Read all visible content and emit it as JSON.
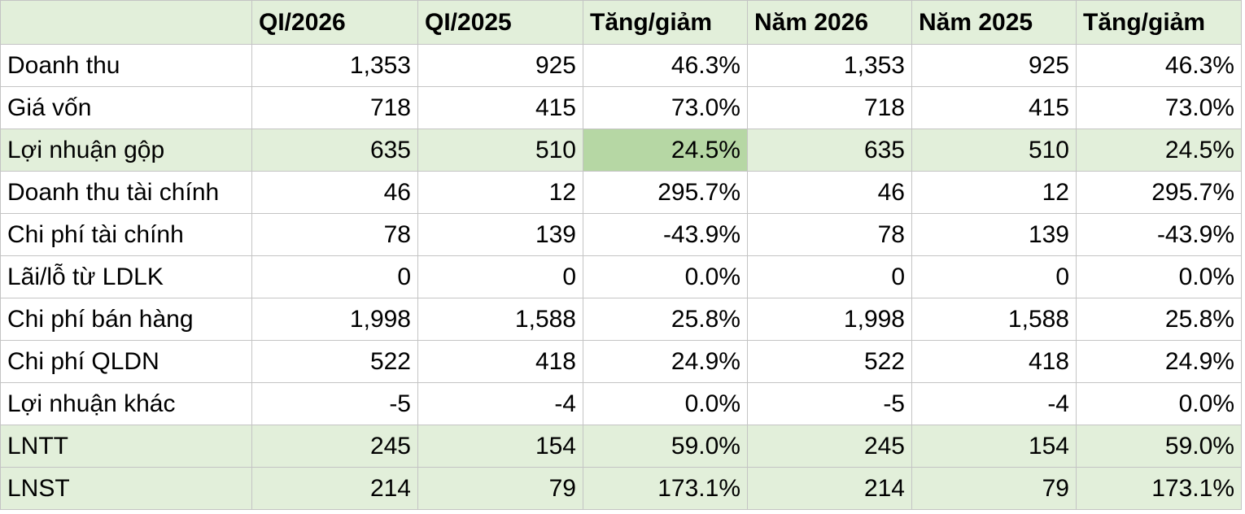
{
  "table": {
    "header": [
      "QI/2026",
      "QI/2025",
      "Tăng/giảm",
      "Năm 2026",
      "Năm 2025",
      "Tăng/giảm"
    ],
    "rows": [
      [
        "Doanh thu",
        "1,353",
        "925",
        "46.3%",
        "1,353",
        "925",
        "46.3%"
      ],
      [
        "Giá vốn",
        "718",
        "415",
        "73.0%",
        "718",
        "415",
        "73.0%"
      ],
      [
        "Lợi nhuận gộp",
        "635",
        "510",
        "24.5%",
        "635",
        "510",
        "24.5%"
      ],
      [
        "Doanh thu tài chính",
        "46",
        "12",
        "295.7%",
        "46",
        "12",
        "295.7%"
      ],
      [
        "Chi phí tài chính",
        "78",
        "139",
        "-43.9%",
        "78",
        "139",
        "-43.9%"
      ],
      [
        "Lãi/lỗ từ LDLK",
        "0",
        "0",
        "0.0%",
        "0",
        "0",
        "0.0%"
      ],
      [
        "Chi phí bán hàng",
        "1,998",
        "1,588",
        "25.8%",
        "1,998",
        "1,588",
        "25.8%"
      ],
      [
        "Chi phí QLDN",
        "522",
        "418",
        "24.9%",
        "522",
        "418",
        "24.9%"
      ],
      [
        "Lợi nhuận khác",
        "-5",
        "-4",
        "0.0%",
        "-5",
        "-4",
        "0.0%"
      ],
      [
        "LNTT",
        "245",
        "154",
        "59.0%",
        "245",
        "154",
        "59.0%"
      ],
      [
        "LNST",
        "214",
        "79",
        "173.1%",
        "214",
        "79",
        "173.1%"
      ]
    ]
  }
}
